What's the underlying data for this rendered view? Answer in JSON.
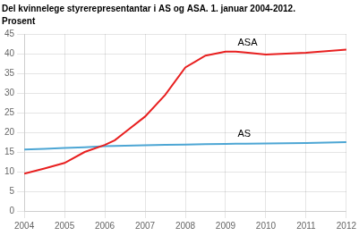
{
  "chart_data": {
    "type": "line",
    "title": "Del kvinnelege styrerepresentantar i AS og ASA. 1. januar 2004-2012.",
    "subtitle": "Prosent",
    "x": [
      2004,
      2004.5,
      2005,
      2005.5,
      2006,
      2006.25,
      2006.5,
      2007,
      2007.5,
      2008,
      2008.25,
      2008.5,
      2009,
      2009.25,
      2009.5,
      2010,
      2010.5,
      2011,
      2011.5,
      2012
    ],
    "series": [
      {
        "color": "#e82020",
        "values": [
          9.5,
          10.8,
          12.2,
          15.0,
          16.8,
          18.0,
          20.0,
          24.0,
          29.5,
          36.5,
          38.0,
          39.5,
          40.5,
          40.5,
          40.3,
          39.8,
          40.0,
          40.2,
          40.6,
          41.0
        ]
      },
      {
        "color": "#4da6d4",
        "values": [
          15.6,
          15.8,
          16.0,
          16.2,
          16.5,
          16.55,
          16.6,
          16.7,
          16.8,
          16.9,
          16.95,
          17.0,
          17.05,
          17.1,
          17.1,
          17.15,
          17.2,
          17.3,
          17.4,
          17.5
        ]
      }
    ],
    "annotations": [
      {
        "text": "ASA",
        "x": 2009.3,
        "y": 41.5
      },
      {
        "text": "AS",
        "x": 2009.3,
        "y": 18.3
      }
    ],
    "xlim": [
      2004,
      2012
    ],
    "xticks": [
      2004,
      2005,
      2006,
      2007,
      2008,
      2009,
      2010,
      2011,
      2012
    ],
    "ylim": [
      0,
      45
    ],
    "yticks": [
      0,
      5,
      10,
      15,
      20,
      25,
      30,
      35,
      40,
      45
    ],
    "grid": true
  }
}
